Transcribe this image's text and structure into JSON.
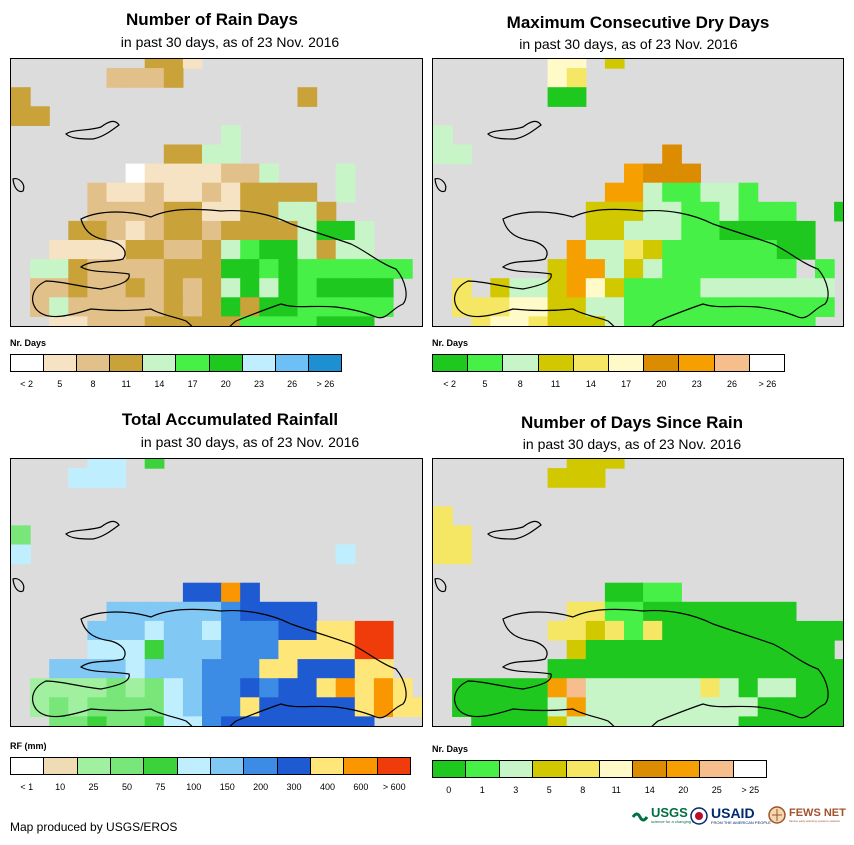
{
  "panels": [
    {
      "title": "Number of Rain Days",
      "subtitle": "in past 30 days, as of 23 Nov. 2016",
      "legend_title": "Nr. Days",
      "legend_labels": [
        "< 2",
        "5",
        "8",
        "11",
        "14",
        "17",
        "20",
        "23",
        "26",
        "> 26"
      ],
      "legend_colors": [
        "#ffffff",
        "#f5e3c3",
        "#e2c08a",
        "#c9a23a",
        "#c8f5c8",
        "#46f046",
        "#1ec81e",
        "#bfefff",
        "#6cc0f5",
        "#1e90d2"
      ],
      "grid": [
        ".......331...........",
        ".....2223............",
        "3..............3.....",
        "33...................",
        "...........4.........",
        "........3344.........",
        "......01111224...4...",
        "....211211213333.4....",
        "....2222331133443....",
        "...3321233233334664..",
        "..11113322345664344..",
        ".44322223336656555555",
        ".2232232323464656666.",
        ".2422222323636655555.",
        "..11222333335555666..",
        "..........3...........",
        ".........33..........."
      ]
    },
    {
      "title": "Maximum Consecutive Dry Days",
      "subtitle": "in past 30 days, as of 23 Nov. 2016",
      "legend_title": "Nr. Days",
      "legend_labels": [
        "< 2",
        "5",
        "8",
        "11",
        "14",
        "17",
        "20",
        "23",
        "26",
        "> 26"
      ],
      "legend_colors": [
        "#1ec81e",
        "#46f046",
        "#c8f5c8",
        "#d2c800",
        "#f5e664",
        "#fffac8",
        "#dc8c00",
        "#f5a000",
        "#f5be8c",
        "#ffffff"
      ],
      "grid": [
        "......55.3............",
        "......54..............",
        "......00..............",
        ".....................",
        "2....................",
        "22..........6........",
        "..........7666.........",
        ".........77211221....",
        "........33322112111..0",
        "........332221100000..",
        ".......7224311111100.",
        "......3772321111111.1",
        ".4.322375311112222222",
        ".44455332211111111111",
        "..455433321111111111.",
        ".........11...........",
        ".........11..........."
      ]
    },
    {
      "title": "Total Accumulated Rainfall",
      "subtitle": "in past 30 days, as of 23 Nov. 2016",
      "legend_title": "RF (mm)",
      "legend_labels": [
        "< 1",
        "10",
        "25",
        "50",
        "75",
        "100",
        "150",
        "200",
        "300",
        "400",
        "600",
        "> 600"
      ],
      "legend_colors": [
        "#ffffff",
        "#f0dcb4",
        "#a0f0a0",
        "#78e678",
        "#3cd23c",
        "#bfefff",
        "#82c8f5",
        "#3c8ce6",
        "#1e5ad2",
        "#ffe678",
        "#fa9600",
        "#f03c0a"
      ],
      "grid": [
        "....55.4..............",
        "...555................",
        ".....................",
        ".....................",
        "3....................",
        "5................5....",
        "..........................",
        ".........88A8.........",
        ".....66666678888......",
        "....66656657778899BB...",
        "....55546667779999BB...",
        "..666656667779988899....",
        ".2222323567787889A9A9.",
        ".232333356779888889A99",
        "..33433455788888888....",
        ".........7............",
        "........77............"
      ]
    },
    {
      "title": "Number of Days Since Rain",
      "subtitle": "in past 30 days, as of 23 Nov. 2016",
      "legend_title": "Nr. Days",
      "legend_labels": [
        "0",
        "1",
        "3",
        "5",
        "8",
        "11",
        "14",
        "20",
        "25",
        "> 25"
      ],
      "legend_colors": [
        "#1ec81e",
        "#46f046",
        "#c8f5c8",
        "#d2c800",
        "#f5e664",
        "#fffac8",
        "#dc8c00",
        "#f5a000",
        "#f5be8c",
        "#ffffff"
      ],
      "grid": [
        ".......333............",
        "......333..............",
        ".....................",
        "4....................",
        "44...................",
        "44...................",
        "..........................",
        ".........0011.........",
        ".......441100000000....",
        "......4434140000000000...",
        ".......30000000000000...",
        "......00000000000000000",
        ".000007822222242022000",
        ".000002722222222200000",
        "..00003222222222000000.",
        ".........2............",
        ".........22..........."
      ]
    }
  ],
  "credit": "Map produced by USGS/EROS",
  "logos": [
    {
      "name": "USGS",
      "tagline": "science for a changing world"
    },
    {
      "name": "USAID",
      "tagline": "FROM THE AMERICAN PEOPLE"
    },
    {
      "name": "FEWS NET",
      "tagline": "famine early warning systems network"
    }
  ]
}
